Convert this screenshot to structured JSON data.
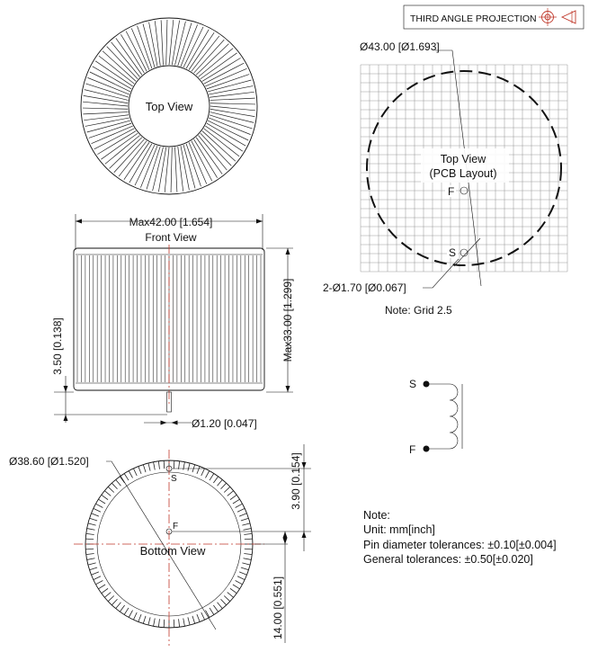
{
  "projection_label": "THIRD ANGLE PROJECTION",
  "top_view": {
    "label": "Top View"
  },
  "front_view": {
    "label": "Front View",
    "width_dim": "Max42.00 [1.654]",
    "height_dim": "Max33.00 [1.299]",
    "offset_dim": "3.50 [0.138]",
    "pin_dim": "Ø1.20 [0.047]"
  },
  "bottom_view": {
    "label": "Bottom View",
    "dia_dim": "Ø38.60 [Ø1.520]",
    "s_offset_dim": "3.90 [0.154]",
    "f_offset_dim": "14.00 [0.551]",
    "pin_s": "S",
    "pin_f": "F"
  },
  "pcb_layout": {
    "title_line1": "Top View",
    "title_line2": "(PCB Layout)",
    "outline_dim": "Ø43.00 [Ø1.693]",
    "hole_dim": "2-Ø1.70 [Ø0.067]",
    "pin_s": "S",
    "pin_f": "F",
    "grid_note": "Note: Grid 2.5"
  },
  "schematic": {
    "pin_s": "S",
    "pin_f": "F"
  },
  "notes": {
    "heading": "Note:",
    "unit": "Unit: mm[inch]",
    "pin_tolerance": "Pin diameter tolerances: ±0.10[±0.004]",
    "general_tolerance": "General tolerances: ±0.50[±0.020]"
  }
}
